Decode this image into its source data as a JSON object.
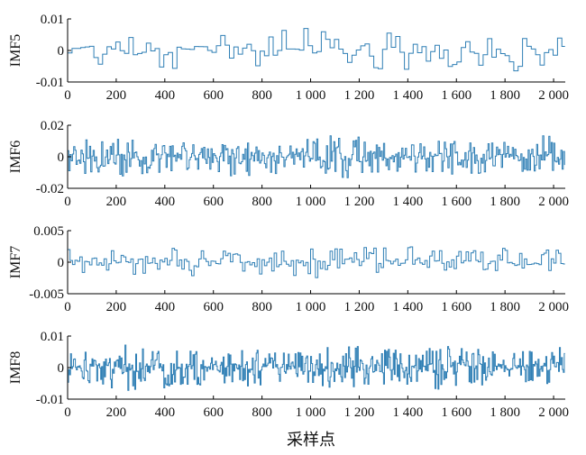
{
  "chart_data": {
    "type": "line",
    "xlabel": "采样点",
    "panels": [
      {
        "ylabel": "IMF5",
        "ylim": [
          -0.01,
          0.01
        ],
        "yticks": [
          0.01,
          0,
          -0.01
        ],
        "ytick_labels": [
          "0.01",
          "0",
          "-0.01"
        ],
        "amplitude": 0.0075,
        "hold": 18,
        "seed": 5
      },
      {
        "ylabel": "IMF6",
        "ylim": [
          -0.02,
          0.02
        ],
        "yticks": [
          0.02,
          0,
          -0.02
        ],
        "ytick_labels": [
          "0.02",
          "0",
          "-0.02"
        ],
        "amplitude": 0.014,
        "hold": 5,
        "seed": 6
      },
      {
        "ylabel": "IMF7",
        "ylim": [
          -0.005,
          0.005
        ],
        "yticks": [
          0.005,
          0,
          -0.005
        ],
        "ytick_labels": [
          "0.005",
          "0",
          "-0.005"
        ],
        "amplitude": 0.0028,
        "hold": 10,
        "seed": 7
      },
      {
        "ylabel": "IMF8",
        "ylim": [
          -0.01,
          0.01
        ],
        "yticks": [
          0.01,
          0,
          -0.01
        ],
        "ytick_labels": [
          "0.01",
          "0",
          "-0.01"
        ],
        "amplitude": 0.0075,
        "hold": 4,
        "seed": 8
      }
    ],
    "xlim": [
      0,
      2048
    ],
    "xticks": [
      0,
      200,
      400,
      600,
      800,
      1000,
      1200,
      1400,
      1600,
      1800,
      2000
    ],
    "xtick_labels": [
      "0",
      "200",
      "400",
      "600",
      "800",
      "1 000",
      "1 200",
      "1 400",
      "1 600",
      "1 800",
      "2 000"
    ],
    "series_color": "#2f7fb5",
    "n_points": 2048
  }
}
